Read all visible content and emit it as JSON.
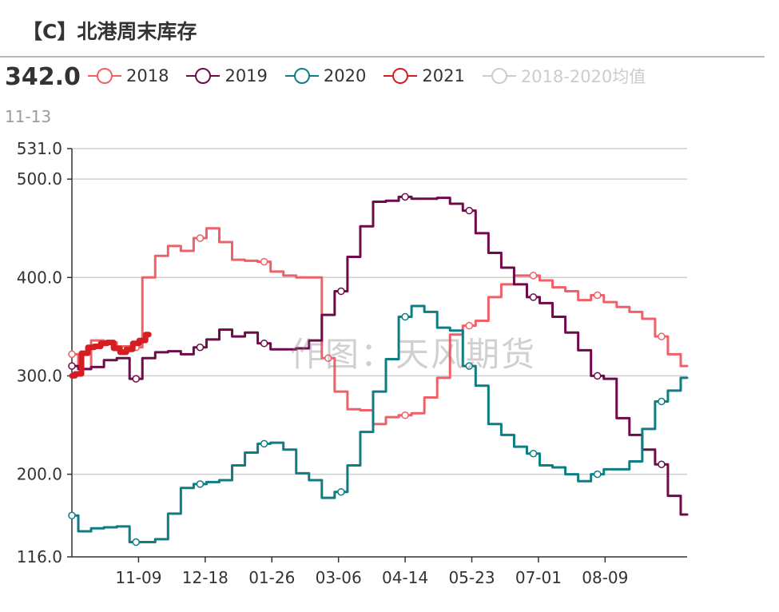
{
  "header": {
    "title": "【C】北港周末库存"
  },
  "current": {
    "value": "342.0",
    "date": "11-13"
  },
  "watermark": "作图：天风期货",
  "chart_data": {
    "type": "line",
    "ylim": [
      116,
      531
    ],
    "yticks": [
      116.0,
      200.0,
      300.0,
      400.0,
      500.0,
      531.0
    ],
    "ytick_labels": [
      "116.0",
      "200.0",
      "300.0",
      "400.0",
      "500.0",
      "531.0"
    ],
    "xlim": [
      0,
      48
    ],
    "xticks": [
      {
        "x": 5.2,
        "label": "11-09"
      },
      {
        "x": 10.4,
        "label": "12-18"
      },
      {
        "x": 15.6,
        "label": "01-26"
      },
      {
        "x": 20.8,
        "label": "03-06"
      },
      {
        "x": 26.0,
        "label": "04-14"
      },
      {
        "x": 31.2,
        "label": "05-23"
      },
      {
        "x": 36.4,
        "label": "07-01"
      },
      {
        "x": 41.6,
        "label": "08-09"
      }
    ],
    "grid": true,
    "legend": "top",
    "series": [
      {
        "name": "2018",
        "color": "#ef6168",
        "width": 3,
        "enabled": true,
        "x": [
          0,
          1,
          2,
          3,
          4,
          5,
          6,
          7,
          8,
          9,
          10,
          11,
          12,
          13,
          14,
          15,
          16,
          17,
          18,
          19,
          20,
          21,
          22,
          23,
          24,
          25,
          26,
          27,
          28,
          29,
          30,
          31,
          32,
          33,
          34,
          35,
          36,
          37,
          38,
          39,
          40,
          41,
          42,
          43,
          44,
          45,
          46,
          47,
          48
        ],
        "y": [
          322,
          307,
          336,
          334,
          330,
          329,
          400,
          422,
          432,
          427,
          440,
          450,
          436,
          418,
          417,
          416,
          406,
          402,
          400,
          400,
          318,
          284,
          266,
          265,
          251,
          258,
          260,
          262,
          278,
          298,
          342,
          351,
          356,
          380,
          393,
          402,
          402,
          397,
          390,
          386,
          377,
          382,
          375,
          370,
          365,
          358,
          340,
          322,
          310
        ],
        "markers": [
          0,
          5,
          10,
          15,
          20,
          26,
          31,
          36,
          41,
          46
        ]
      },
      {
        "name": "2019",
        "color": "#6f0b4b",
        "width": 3,
        "enabled": true,
        "x": [
          0,
          1,
          2,
          3,
          4,
          5,
          6,
          7,
          8,
          9,
          10,
          11,
          12,
          13,
          14,
          15,
          16,
          17,
          18,
          19,
          20,
          21,
          22,
          23,
          24,
          25,
          26,
          27,
          28,
          29,
          30,
          31,
          32,
          33,
          34,
          35,
          36,
          37,
          38,
          39,
          40,
          41,
          42,
          43,
          44,
          45,
          46,
          47,
          48
        ],
        "y": [
          310,
          307,
          309,
          316,
          318,
          297,
          318,
          324,
          325,
          322,
          329,
          337,
          347,
          340,
          344,
          333,
          327,
          327,
          328,
          336,
          362,
          386,
          421,
          452,
          477,
          478,
          482,
          480,
          480,
          481,
          475,
          468,
          445,
          425,
          410,
          393,
          380,
          374,
          360,
          344,
          326,
          300,
          297,
          257,
          240,
          225,
          210,
          178,
          159
        ],
        "markers": [
          0,
          5,
          10,
          15,
          21,
          26,
          31,
          36,
          41,
          46
        ]
      },
      {
        "name": "2020",
        "color": "#0e7e84",
        "width": 3,
        "enabled": true,
        "x": [
          0,
          1,
          2,
          3,
          4,
          5,
          6,
          7,
          8,
          9,
          10,
          11,
          12,
          13,
          14,
          15,
          16,
          17,
          18,
          19,
          20,
          21,
          22,
          23,
          24,
          25,
          26,
          27,
          28,
          29,
          30,
          31,
          32,
          33,
          34,
          35,
          36,
          37,
          38,
          39,
          40,
          41,
          42,
          43,
          44,
          45,
          46,
          47,
          48
        ],
        "y": [
          158,
          142,
          145,
          146,
          147,
          131,
          131,
          134,
          160,
          186,
          190,
          192,
          194,
          209,
          222,
          231,
          232,
          225,
          201,
          194,
          176,
          182,
          209,
          243,
          284,
          317,
          360,
          371,
          365,
          349,
          346,
          310,
          290,
          251,
          240,
          228,
          221,
          209,
          207,
          200,
          193,
          200,
          205,
          205,
          213,
          246,
          274,
          285,
          298
        ],
        "markers": [
          0,
          5,
          10,
          15,
          21,
          26,
          31,
          36,
          41,
          46
        ]
      },
      {
        "name": "2021",
        "color": "#d61e22",
        "width": 7,
        "enabled": true,
        "x": [
          0,
          0.5,
          1,
          1.5,
          2,
          2.5,
          3,
          3.5,
          4,
          4.5,
          5,
          5.5,
          6
        ],
        "y": [
          300,
          302,
          323,
          329,
          330,
          333,
          334,
          328,
          324,
          327,
          333,
          336,
          342
        ],
        "markers": []
      },
      {
        "name": "2018-2020均值",
        "color": "#cccccc",
        "width": 2,
        "enabled": false,
        "x": [],
        "y": [],
        "markers": []
      }
    ]
  }
}
